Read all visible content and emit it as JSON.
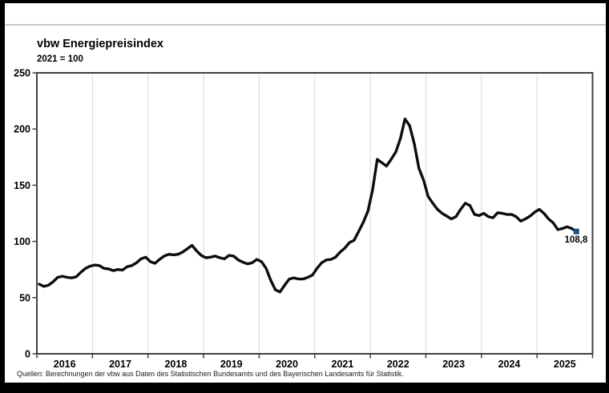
{
  "chart": {
    "title": "vbw Energiepreisindex",
    "subtitle": "2021 = 100",
    "source": "Quellen: Berechnungen der vbw aus Daten des Statistischen Bundesamts und des Bayerischen Landesamts für Statistik.",
    "end_label": "108,8"
  },
  "chart_data": {
    "type": "line",
    "title": "vbw Energiepreisindex",
    "subtitle": "2021 = 100",
    "xlabel": "",
    "ylabel": "",
    "ylim": [
      0,
      250
    ],
    "y_tick_labels": [
      "0",
      "50",
      "100",
      "150",
      "200",
      "250"
    ],
    "y_tick_values": [
      0,
      50,
      100,
      150,
      200,
      250
    ],
    "x_tick_labels": [
      "2016",
      "2017",
      "2018",
      "2019",
      "2020",
      "2021",
      "2022",
      "2023",
      "2024",
      "2025"
    ],
    "grid": "vertical-year-lines",
    "legend": "none",
    "frequency": "monthly",
    "x_start": "2016-01",
    "x_end": "2025-09",
    "series": [
      {
        "name": "vbw Energiepreisindex",
        "color": "#0d0d0d",
        "values": [
          62,
          60,
          61,
          64,
          68,
          69,
          68,
          67.5,
          68.5,
          72.5,
          76,
          78,
          79,
          78.5,
          76,
          75.5,
          74,
          75,
          74.5,
          77.5,
          78.5,
          81,
          84.5,
          86,
          82,
          80.5,
          84,
          87,
          88.5,
          88,
          88.5,
          90.5,
          93.5,
          96.5,
          91.5,
          87.5,
          85.5,
          86,
          87,
          85.5,
          84.5,
          87.5,
          87,
          83.5,
          81.5,
          80,
          81,
          84,
          82,
          76,
          65.5,
          57,
          55,
          61,
          66.5,
          67.5,
          66.5,
          66.5,
          68,
          70,
          76,
          81,
          83.5,
          84,
          86,
          90.5,
          94,
          99,
          101,
          109,
          117,
          127,
          146,
          173,
          170,
          167,
          173,
          179.5,
          191.5,
          209,
          203,
          187,
          165,
          154.5,
          140,
          134,
          128.5,
          125,
          122.5,
          120,
          122,
          128.5,
          134,
          132,
          124,
          123,
          125,
          122,
          121,
          125.5,
          125,
          124,
          124,
          122,
          118,
          120,
          122.5,
          126,
          128.5,
          125,
          120,
          116.5,
          110.5,
          111.5,
          113,
          111.5,
          108.8
        ]
      }
    ],
    "last_value": 108.8,
    "last_value_label": "108,8",
    "marker_color": "#1f4e79",
    "gridline_color": "#d9d9d9",
    "axis_color": "#404040",
    "tick_label_color": "#000000"
  }
}
